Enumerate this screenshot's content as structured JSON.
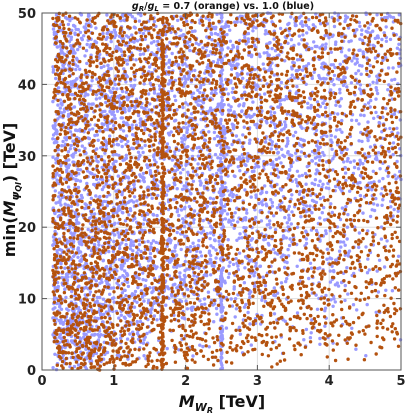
{
  "chart_data": {
    "type": "scatter",
    "title_parts": {
      "g1": "g",
      "g1_sub": "R",
      "sep": "/",
      "g2": "g",
      "g2_sub": "L",
      "rest": " = 0.7 (orange) vs. 1.0 (blue)"
    },
    "xlabel_parts": {
      "main": "M",
      "sub": "W",
      "subsub": "R",
      "unit": " [TeV]"
    },
    "ylabel_parts": {
      "prefix": "min(",
      "main": "M",
      "sub": "ψ",
      "subsub": "Ql",
      "suffix": ") [TeV]"
    },
    "xlim": [
      0,
      5
    ],
    "ylim": [
      0,
      50
    ],
    "xticks": [
      0,
      1,
      2,
      3,
      4,
      5
    ],
    "yticks": [
      0,
      10,
      20,
      30,
      40,
      50
    ],
    "xtick_labels": [
      "0",
      "1",
      "2",
      "3",
      "4",
      "5"
    ],
    "ytick_labels": [
      "0",
      "10",
      "20",
      "30",
      "40",
      "50"
    ],
    "grid": true,
    "series": [
      {
        "color": "#9a9aff",
        "marker_radius": 1.7,
        "x_range": [
          0.15,
          5.0
        ],
        "y_range": [
          0,
          50
        ],
        "count": 4200,
        "min_y_slope": 8.0,
        "vertical_line_x": 2.5,
        "vertical_line_count": 220
      },
      {
        "color": "#b4520f",
        "marker_radius": 1.7,
        "x_range": [
          0.15,
          5.0
        ],
        "y_range": [
          0,
          50
        ],
        "count": 4200,
        "min_y_slope": 2.0,
        "vertical_line_x": 1.68,
        "vertical_line_count": 260
      }
    ]
  }
}
